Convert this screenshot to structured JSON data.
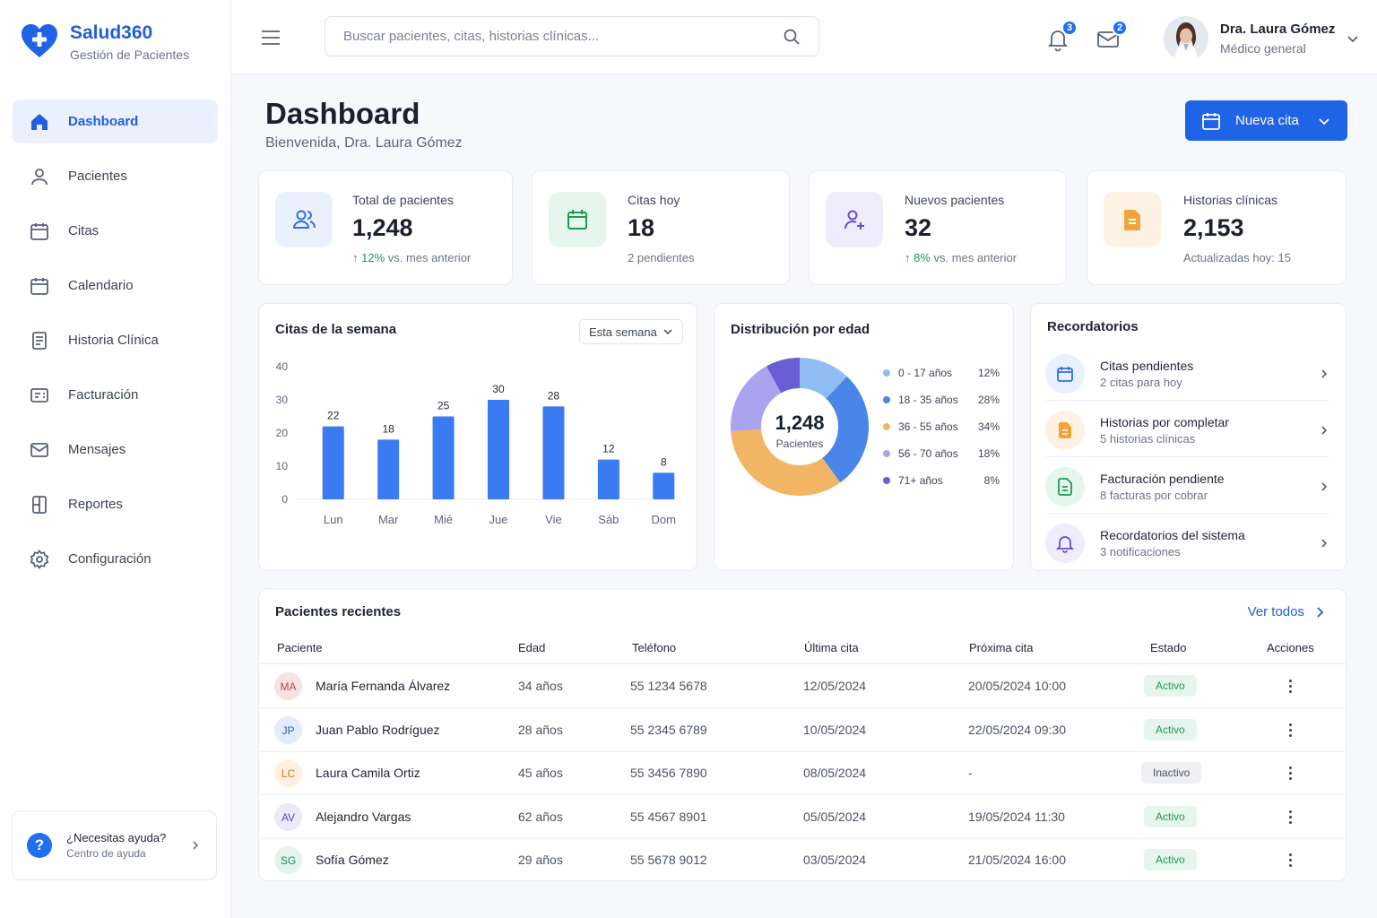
{
  "app": {
    "name": "Salud360",
    "subtitle": "Gestión de Pacientes",
    "brand_color": "#1f5fd9"
  },
  "sidebar": {
    "items": [
      {
        "label": "Dashboard",
        "icon": "home-icon",
        "active": true
      },
      {
        "label": "Pacientes",
        "icon": "user-icon"
      },
      {
        "label": "Citas",
        "icon": "calendar-icon"
      },
      {
        "label": "Calendario",
        "icon": "calendar-icon"
      },
      {
        "label": "Historia Clínica",
        "icon": "document-icon"
      },
      {
        "label": "Facturación",
        "icon": "invoice-icon"
      },
      {
        "label": "Mensajes",
        "icon": "mail-icon"
      },
      {
        "label": "Reportes",
        "icon": "report-icon"
      },
      {
        "label": "Configuración",
        "icon": "gear-icon"
      }
    ],
    "help": {
      "title": "¿Necesitas ayuda?",
      "subtitle": "Centro de ayuda"
    }
  },
  "topbar": {
    "search_placeholder": "Buscar pacientes, citas, historias clínicas...",
    "notifications_count": "3",
    "messages_count": "2",
    "user": {
      "name": "Dra. Laura Gómez",
      "role": "Médico general"
    }
  },
  "page": {
    "title": "Dashboard",
    "subtitle": "Bienvenida, Dra. Laura Gómez",
    "new_button": "Nueva cita"
  },
  "stats": [
    {
      "label": "Total de pacientes",
      "value": "1,248",
      "note_value": "12%",
      "note_text": "vs. mes anterior",
      "icon": "users-icon",
      "color": "#2f6de1",
      "bg": "#eaf1fd"
    },
    {
      "label": "Citas hoy",
      "value": "18",
      "note_text": "2 pendientes",
      "icon": "calendar-icon",
      "color": "#1e9a52",
      "bg": "#e6f6ec"
    },
    {
      "label": "Nuevos pacientes",
      "value": "32",
      "note_value": "8%",
      "note_text": "vs. mes anterior",
      "icon": "user-plus-icon",
      "color": "#6a4bd6",
      "bg": "#efecfb"
    },
    {
      "label": "Historias clínicas",
      "value": "2,153",
      "note_text": "Actualizadas hoy: 15",
      "icon": "document-icon",
      "color": "#e58a1f",
      "bg": "#fdf2e3"
    }
  ],
  "weekly": {
    "title": "Citas de la semana",
    "selector": "Esta semana"
  },
  "age": {
    "title": "Distribución por edad",
    "center_value": "1,248",
    "center_label": "Pacientes"
  },
  "reminders": {
    "title": "Recordatorios",
    "items": [
      {
        "title": "Citas pendientes",
        "subtitle": "2 citas para hoy",
        "icon": "calendar-icon",
        "color": "#2f6de1",
        "bg": "#eaf1fd"
      },
      {
        "title": "Historias por completar",
        "subtitle": "5 historias clínicas",
        "icon": "document-icon",
        "color": "#e58a1f",
        "bg": "#fdf2e3"
      },
      {
        "title": "Facturación pendiente",
        "subtitle": "8 facturas por cobrar",
        "icon": "invoice-icon",
        "color": "#1e9a52",
        "bg": "#e6f6ec"
      },
      {
        "title": "Recordatorios del sistema",
        "subtitle": "3 notificaciones",
        "icon": "bell-icon",
        "color": "#6a4bd6",
        "bg": "#efecfb"
      }
    ]
  },
  "recent": {
    "title": "Pacientes recientes",
    "see_all": "Ver todos",
    "columns": [
      "Paciente",
      "Edad",
      "Teléfono",
      "Última cita",
      "Próxima cita",
      "Estado",
      "Acciones"
    ],
    "rows": [
      {
        "initials": "MA",
        "name": "María Fernanda Álvarez",
        "age": "34 años",
        "phone": "55 1234 5678",
        "last": "12/05/2024",
        "next": "20/05/2024 10:00",
        "status": "Activo",
        "av_color": "#f8e1e1",
        "av_text": "#c0454b"
      },
      {
        "initials": "JP",
        "name": "Juan Pablo Rodríguez",
        "age": "28 años",
        "phone": "55 2345 6789",
        "last": "10/05/2024",
        "next": "22/05/2024 09:30",
        "status": "Activo",
        "av_color": "#e3ecfb",
        "av_text": "#2f5ea8"
      },
      {
        "initials": "LC",
        "name": "Laura Camila Ortiz",
        "age": "45 años",
        "phone": "55 3456 7890",
        "last": "08/05/2024",
        "next": "-",
        "status": "Inactivo",
        "av_color": "#fdf0df",
        "av_text": "#c97a1c"
      },
      {
        "initials": "AV",
        "name": "Alejandro Vargas",
        "age": "62 años",
        "phone": "55 4567 8901",
        "last": "05/05/2024",
        "next": "19/05/2024 11:30",
        "status": "Activo",
        "av_color": "#ece9f8",
        "av_text": "#5a4aa3"
      },
      {
        "initials": "SG",
        "name": "Sofía Gómez",
        "age": "29 años",
        "phone": "55 5678 9012",
        "last": "03/05/2024",
        "next": "21/05/2024 16:00",
        "status": "Activo",
        "av_color": "#e3f4ec",
        "av_text": "#2d8a5c"
      }
    ]
  },
  "chart_data": [
    {
      "type": "bar",
      "categories": [
        "Lun",
        "Mar",
        "Mié",
        "Jue",
        "Vie",
        "Sáb",
        "Dom"
      ],
      "values": [
        22,
        18,
        25,
        30,
        28,
        12,
        8
      ],
      "title": "Citas de la semana",
      "yticks": [
        0,
        10,
        20,
        30,
        40
      ],
      "ylim": [
        0,
        40
      ],
      "color": "#3b7bf2"
    },
    {
      "type": "pie",
      "title": "Distribución por edad",
      "labels": [
        "0 - 17 años",
        "18 - 35 años",
        "36 - 55 años",
        "56 - 70 años",
        "71+ años"
      ],
      "values": [
        12,
        28,
        34,
        18,
        8
      ],
      "value_labels": [
        "12%",
        "28%",
        "34%",
        "18%",
        "8%"
      ],
      "colors": [
        "#8fbdf3",
        "#4a86e8",
        "#f2b565",
        "#aaa3ee",
        "#6b5dd3"
      ]
    }
  ]
}
